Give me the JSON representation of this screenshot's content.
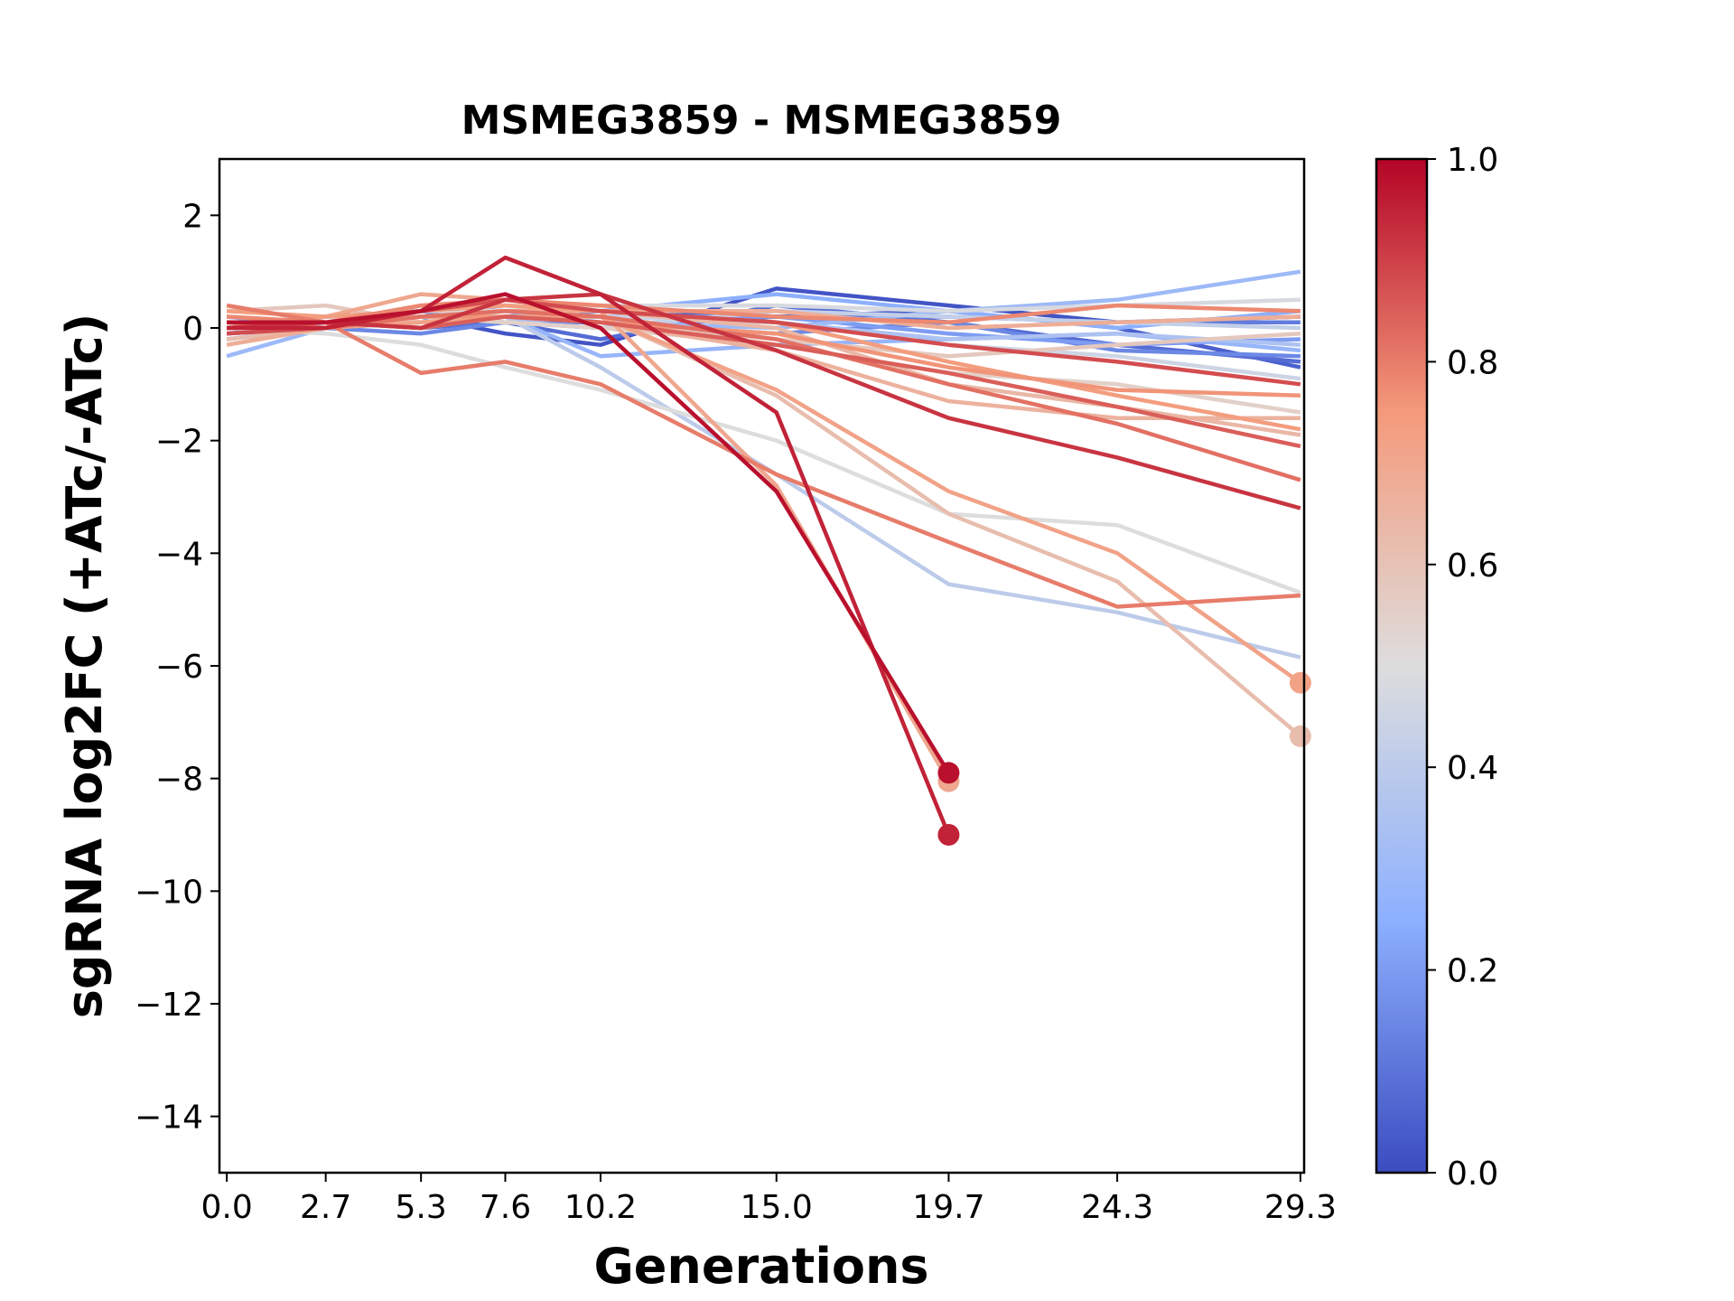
{
  "chart_data": {
    "type": "line",
    "title": "MSMEG3859 - MSMEG3859",
    "xlabel": "Generations",
    "ylabel": "sgRNA log2FC (+ATc/-ATc)",
    "x": [
      0.0,
      2.7,
      5.3,
      7.6,
      10.2,
      15.0,
      19.7,
      24.3,
      29.3
    ],
    "x_tick_labels": [
      "0.0",
      "2.7",
      "5.3",
      "7.6",
      "10.2",
      "15.0",
      "19.7",
      "24.3",
      "29.3"
    ],
    "xlim": [
      -0.2,
      29.4
    ],
    "ylim": [
      -15,
      3
    ],
    "y_ticks": [
      2,
      0,
      -2,
      -4,
      -6,
      -8,
      -10,
      -12,
      -14
    ],
    "y_tick_labels": [
      "2",
      "0",
      "−2",
      "−4",
      "−6",
      "−8",
      "−10",
      "−12",
      "−14"
    ],
    "grid": false,
    "colorbar": {
      "colormap": "coolwarm",
      "range": [
        0.0,
        1.0
      ],
      "ticks": [
        0.0,
        0.2,
        0.4,
        0.6,
        0.8,
        1.0
      ],
      "tick_labels": [
        "0.0",
        "0.2",
        "0.4",
        "0.6",
        "0.8",
        "1.0"
      ]
    },
    "series": [
      {
        "c": 0.02,
        "values": [
          0.0,
          0.1,
          0.2,
          -0.1,
          -0.3,
          0.7,
          0.4,
          0.1,
          0.2
        ]
      },
      {
        "c": 0.05,
        "values": [
          -0.1,
          0.0,
          0.1,
          0.2,
          0.3,
          0.2,
          0.3,
          0.0,
          -0.7
        ]
      },
      {
        "c": 0.08,
        "values": [
          0.1,
          0.1,
          0.0,
          0.1,
          -0.2,
          0.4,
          0.1,
          -0.3,
          -0.6
        ]
      },
      {
        "c": 0.12,
        "values": [
          0.0,
          0.2,
          0.3,
          0.1,
          0.0,
          0.2,
          0.2,
          0.1,
          0.1
        ]
      },
      {
        "c": 0.15,
        "values": [
          -0.2,
          0.0,
          -0.1,
          0.1,
          0.1,
          -0.1,
          0.1,
          -0.4,
          -0.5
        ]
      },
      {
        "c": 0.2,
        "values": [
          0.0,
          0.1,
          0.2,
          0.3,
          0.2,
          0.2,
          -0.1,
          -0.3,
          -0.2
        ]
      },
      {
        "c": 0.25,
        "values": [
          0.2,
          0.0,
          0.3,
          0.4,
          0.3,
          0.6,
          0.3,
          0.0,
          0.3
        ]
      },
      {
        "c": 0.28,
        "values": [
          -0.1,
          0.1,
          0.0,
          0.2,
          -0.5,
          -0.3,
          -0.2,
          -0.1,
          -0.4
        ]
      },
      {
        "c": 0.3,
        "values": [
          -0.5,
          0.0,
          0.4,
          0.3,
          0.1,
          0.0,
          0.3,
          0.5,
          1.0
        ]
      },
      {
        "c": 0.35,
        "values": [
          0.1,
          0.1,
          0.2,
          0.1,
          0.2,
          0.1,
          -0.2,
          -0.1,
          -0.3
        ]
      },
      {
        "c": 0.4,
        "values": [
          0.0,
          0.0,
          0.1,
          0.2,
          -0.7,
          -2.6,
          -4.55,
          -5.05,
          -5.85
        ]
      },
      {
        "c": 0.42,
        "values": [
          0.1,
          0.0,
          0.2,
          0.1,
          0.0,
          0.3,
          0.2,
          0.1,
          0.0
        ]
      },
      {
        "c": 0.45,
        "values": [
          0.0,
          0.2,
          0.1,
          0.3,
          0.2,
          0.1,
          -0.3,
          -0.5,
          -0.9
        ]
      },
      {
        "c": 0.48,
        "values": [
          0.2,
          0.1,
          0.3,
          0.3,
          0.4,
          0.4,
          0.3,
          0.4,
          0.5
        ]
      },
      {
        "c": 0.5,
        "values": [
          0.0,
          -0.1,
          -0.3,
          -0.7,
          -1.1,
          -2.0,
          -3.3,
          -3.5,
          -4.7
        ]
      },
      {
        "c": 0.55,
        "values": [
          0.1,
          0.0,
          0.2,
          0.1,
          0.0,
          -0.3,
          -0.8,
          -1.0,
          -1.5
        ]
      },
      {
        "c": 0.58,
        "values": [
          0.3,
          0.4,
          0.1,
          0.2,
          0.1,
          -0.2,
          -0.5,
          -0.3,
          -0.1
        ]
      },
      {
        "c": 0.62,
        "values": [
          -0.2,
          0.0,
          0.2,
          0.3,
          0.2,
          -1.2,
          -3.3,
          -4.5,
          -7.25
        ]
      },
      {
        "c": 0.64,
        "values": [
          0.2,
          0.1,
          0.3,
          0.4,
          0.3,
          0.0,
          -1.0,
          -1.4,
          -1.9
        ]
      },
      {
        "c": 0.66,
        "values": [
          0.0,
          0.1,
          0.0,
          0.2,
          0.1,
          -0.4,
          -1.3,
          -1.6,
          -1.6
        ]
      },
      {
        "c": 0.68,
        "values": [
          -0.3,
          0.0,
          0.2,
          0.3,
          0.3,
          0.3,
          0.0,
          0.1,
          0.2
        ]
      },
      {
        "c": 0.7,
        "values": [
          0.0,
          0.2,
          0.6,
          0.5,
          0.3,
          -2.8,
          -8.05,
          null,
          null
        ]
      },
      {
        "c": 0.72,
        "values": [
          0.1,
          0.0,
          0.1,
          0.2,
          0.2,
          -1.1,
          -2.9,
          -4.0,
          -6.3
        ]
      },
      {
        "c": 0.74,
        "values": [
          0.3,
          0.2,
          0.3,
          0.4,
          0.3,
          0.1,
          -0.6,
          -1.2,
          -1.8
        ]
      },
      {
        "c": 0.76,
        "values": [
          0.0,
          0.1,
          0.2,
          0.2,
          0.1,
          -0.1,
          -0.7,
          -1.1,
          -1.2
        ]
      },
      {
        "c": 0.78,
        "values": [
          0.2,
          0.1,
          0.4,
          0.5,
          0.4,
          0.2,
          0.1,
          0.4,
          0.3
        ]
      },
      {
        "c": 0.8,
        "values": [
          0.4,
          0.1,
          -0.8,
          -0.6,
          -1.0,
          -2.6,
          -3.8,
          -4.95,
          -4.75
        ]
      },
      {
        "c": 0.82,
        "values": [
          0.1,
          0.0,
          0.2,
          0.3,
          0.2,
          -0.2,
          -1.0,
          -1.7,
          -2.7
        ]
      },
      {
        "c": 0.85,
        "values": [
          0.0,
          0.1,
          0.0,
          0.2,
          0.1,
          -0.3,
          -0.8,
          -1.4,
          -2.1
        ]
      },
      {
        "c": 0.88,
        "values": [
          -0.1,
          0.0,
          0.3,
          0.5,
          0.3,
          0.1,
          -0.3,
          -0.6,
          -1.0
        ]
      },
      {
        "c": 0.92,
        "values": [
          0.0,
          0.1,
          0.0,
          0.5,
          0.6,
          -0.4,
          -1.6,
          -2.3,
          -3.2
        ]
      },
      {
        "c": 0.95,
        "values": [
          0.0,
          0.0,
          0.3,
          1.25,
          0.6,
          -1.5,
          -9.0,
          null,
          null
        ]
      },
      {
        "c": 0.98,
        "values": [
          0.1,
          0.1,
          0.3,
          0.6,
          0.0,
          -2.9,
          -7.9,
          null,
          null
        ]
      }
    ]
  }
}
